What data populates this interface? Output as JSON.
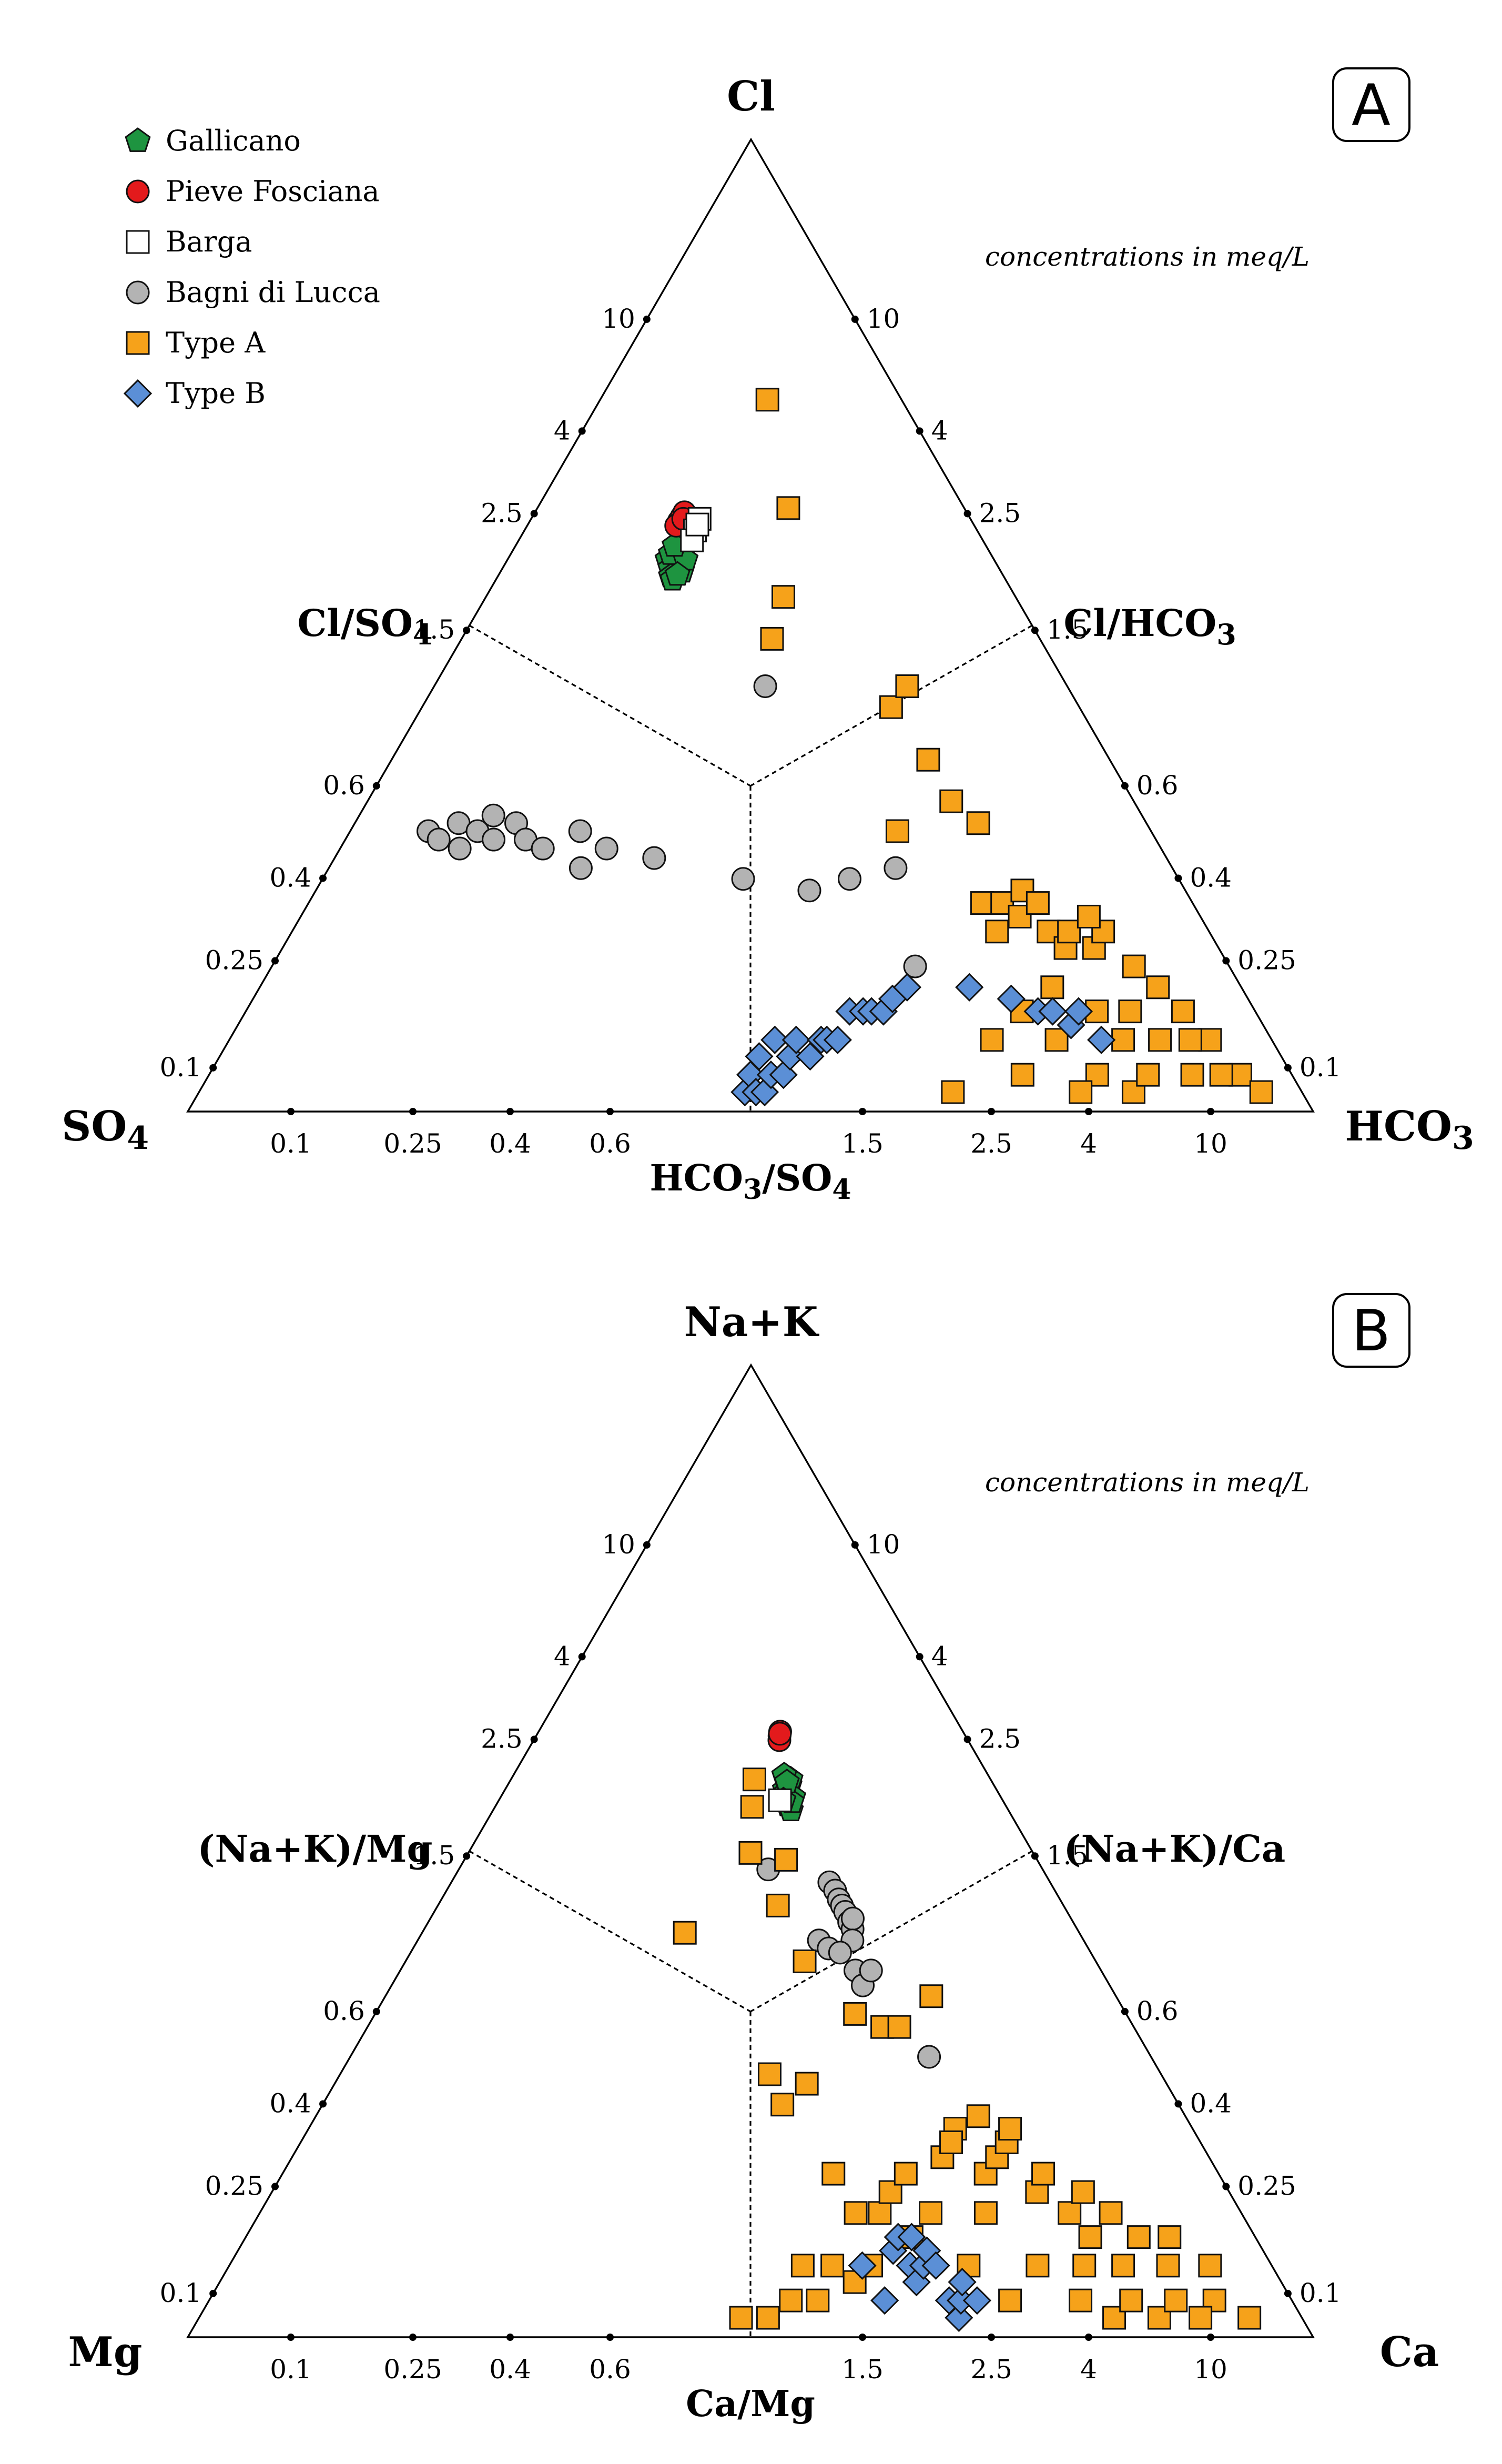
{
  "colors": {
    "gallicano": "#1e9440",
    "pieve": "#e31a1c",
    "barga": "#ffffff",
    "bagni": "#b3b3b3",
    "typeA": "#f6a21a",
    "typeB": "#5b8fd6"
  },
  "legend": [
    {
      "key": "gallicano",
      "label": "Gallicano",
      "marker": "pentagon"
    },
    {
      "key": "pieve",
      "label": "Pieve Fosciana",
      "marker": "circle"
    },
    {
      "key": "barga",
      "label": "Barga",
      "marker": "square"
    },
    {
      "key": "bagni",
      "label": "Bagni di Lucca",
      "marker": "circle"
    },
    {
      "key": "typeA",
      "label": "Type A",
      "marker": "square"
    },
    {
      "key": "typeB",
      "label": "Type B",
      "marker": "diamond"
    }
  ],
  "chart_data": [
    {
      "type": "scatter",
      "panel": "A",
      "note": "concentrations in meq/L",
      "apex": {
        "label": "Cl",
        "sub": ""
      },
      "left_corner": {
        "label": "SO",
        "sub": "4"
      },
      "right_corner": {
        "label": "HCO",
        "sub": "3"
      },
      "left_field": {
        "label": "Cl/SO",
        "sub": "4"
      },
      "right_field": {
        "label": "Cl/HCO",
        "sub": "3"
      },
      "bottom_axis": {
        "parts": [
          [
            "HCO",
            false
          ],
          [
            "3",
            true
          ],
          [
            "/SO",
            false
          ],
          [
            "4",
            true
          ]
        ]
      },
      "apex_ticks": [
        "10",
        "4",
        "2.5",
        "1.5"
      ],
      "side_ticks": [
        "0.6",
        "0.4",
        "0.25",
        "0.1"
      ],
      "bottom_ticks_left": [
        "0.1",
        "0.25",
        "0.4",
        "0.6"
      ],
      "bottom_ticks_right": [
        "1.5",
        "2.5",
        "4",
        "10"
      ],
      "series": [
        {
          "key": "bagni",
          "name": "Bagni di Lucca",
          "points": [
            [
              0.09,
              0.19
            ],
            [
              0.1,
              0.18
            ],
            [
              0.11,
              0.2
            ],
            [
              0.12,
              0.17
            ],
            [
              0.13,
              0.19
            ],
            [
              0.14,
              0.21
            ],
            [
              0.15,
              0.18
            ],
            [
              0.17,
              0.2
            ],
            [
              0.19,
              0.18
            ],
            [
              0.22,
              0.17
            ],
            [
              0.28,
              0.19
            ],
            [
              0.3,
              0.15
            ],
            [
              0.35,
              0.17
            ],
            [
              0.5,
              0.16
            ],
            [
              0.95,
              0.14
            ],
            [
              1.5,
              0.13
            ],
            [
              2.0,
              0.14
            ],
            [
              2.8,
              0.15
            ],
            [
              2.8,
              0.08
            ],
            [
              1.15,
              0.48
            ]
          ]
        },
        {
          "key": "typeB",
          "name": "Type B",
          "points": [
            [
              0.97,
              0.03
            ],
            [
              1.0,
              0.04
            ],
            [
              1.03,
              0.03
            ],
            [
              1.05,
              0.045
            ],
            [
              1.08,
              0.035
            ],
            [
              1.12,
              0.04
            ],
            [
              1.15,
              0.05
            ],
            [
              1.2,
              0.04
            ],
            [
              1.25,
              0.045
            ],
            [
              1.3,
              0.05
            ],
            [
              1.4,
              0.045
            ],
            [
              1.5,
              0.05
            ],
            [
              1.55,
              0.05
            ],
            [
              1.65,
              0.05
            ],
            [
              1.8,
              0.06
            ],
            [
              1.95,
              0.06
            ],
            [
              2.05,
              0.06
            ],
            [
              2.2,
              0.06
            ],
            [
              2.35,
              0.065
            ],
            [
              2.6,
              0.07
            ],
            [
              3.8,
              0.07
            ],
            [
              4.8,
              0.065
            ],
            [
              5.5,
              0.06
            ],
            [
              6.0,
              0.06
            ],
            [
              6.5,
              0.055
            ],
            [
              7.0,
              0.06
            ],
            [
              7.5,
              0.05
            ]
          ]
        },
        {
          "key": "typeA",
          "name": "Type A",
          "points": [
            [
              1.4,
              3.0
            ],
            [
              1.7,
              1.5
            ],
            [
              1.45,
              0.85
            ],
            [
              1.25,
              0.65
            ],
            [
              3.6,
              0.42
            ],
            [
              4.4,
              0.48
            ],
            [
              4.4,
              0.3
            ],
            [
              4.8,
              0.23
            ],
            [
              5.6,
              0.2
            ],
            [
              3.0,
              0.19
            ],
            [
              4.8,
              0.12
            ],
            [
              5.5,
              0.12
            ],
            [
              6.0,
              0.11
            ],
            [
              6.5,
              0.13
            ],
            [
              7.0,
              0.1
            ],
            [
              7.5,
              0.09
            ],
            [
              8.0,
              0.1
            ],
            [
              9.0,
              0.09
            ],
            [
              10.0,
              0.1
            ],
            [
              11.0,
              0.08
            ],
            [
              12.0,
              0.07
            ],
            [
              13.0,
              0.06
            ],
            [
              14.0,
              0.05
            ],
            [
              15.0,
              0.04
            ],
            [
              16.0,
              0.03
            ],
            [
              4.0,
              0.05
            ],
            [
              4.5,
              0.04
            ],
            [
              5.0,
              0.06
            ],
            [
              5.8,
              0.05
            ],
            [
              6.3,
              0.07
            ],
            [
              6.8,
              0.04
            ],
            [
              7.8,
              0.06
            ],
            [
              8.5,
              0.05
            ],
            [
              9.5,
              0.06
            ],
            [
              10.5,
              0.05
            ],
            [
              11.5,
              0.04
            ],
            [
              12.5,
              0.05
            ],
            [
              13.5,
              0.04
            ],
            [
              3.0,
              0.03
            ],
            [
              6.0,
              0.03
            ],
            [
              8.0,
              0.03
            ],
            [
              9.0,
              0.04
            ],
            [
              5.0,
              0.1
            ],
            [
              7.0,
              0.12
            ],
            [
              9.5,
              0.11
            ]
          ]
        },
        {
          "key": "gallicano",
          "name": "Gallicano",
          "points": [
            [
              0.36,
              1.08
            ],
            [
              0.38,
              1.02
            ],
            [
              0.4,
              1.1
            ],
            [
              0.42,
              1.05
            ],
            [
              0.39,
              0.97
            ],
            [
              0.41,
              1.15
            ],
            [
              0.44,
              1.0
            ],
            [
              0.37,
              1.12
            ],
            [
              0.43,
              1.2
            ],
            [
              0.4,
              0.95
            ],
            [
              0.45,
              1.08
            ],
            [
              0.38,
              1.18
            ],
            [
              0.42,
              0.98
            ]
          ]
        },
        {
          "key": "pieve",
          "name": "Pieve Fosciana",
          "points": [
            [
              0.38,
              1.38
            ],
            [
              0.39,
              1.42
            ],
            [
              0.4,
              1.46
            ],
            [
              0.37,
              1.34
            ],
            [
              0.4,
              1.4
            ]
          ]
        },
        {
          "key": "barga",
          "name": "Barga",
          "points": [
            [
              0.48,
              1.3
            ],
            [
              0.5,
              1.4
            ],
            [
              0.47,
              1.22
            ],
            [
              0.49,
              1.35
            ]
          ]
        }
      ]
    },
    {
      "type": "scatter",
      "panel": "B",
      "note": "concentrations in meq/L",
      "apex": {
        "label": "Na+K",
        "sub": ""
      },
      "left_corner": {
        "label": "Mg",
        "sub": ""
      },
      "right_corner": {
        "label": "Ca",
        "sub": ""
      },
      "left_field": {
        "label": "(Na+K)/Mg",
        "sub": ""
      },
      "right_field": {
        "label": "(Na+K)/Ca",
        "sub": ""
      },
      "bottom_axis": {
        "parts": [
          [
            "Ca/Mg",
            false
          ]
        ]
      },
      "apex_ticks": [
        "10",
        "4",
        "2.5",
        "1.5"
      ],
      "side_ticks": [
        "0.6",
        "0.4",
        "0.25",
        "0.1"
      ],
      "bottom_ticks_left": [
        "0.1",
        "0.25",
        "0.4",
        "0.6"
      ],
      "bottom_ticks_right": [
        "1.5",
        "2.5",
        "4",
        "10"
      ],
      "series": [
        {
          "key": "bagni",
          "name": "Bagni di Lucca",
          "points": [
            [
              2.2,
              0.58
            ],
            [
              2.3,
              0.55
            ],
            [
              2.35,
              0.52
            ],
            [
              2.4,
              0.5
            ],
            [
              2.45,
              0.48
            ],
            [
              2.5,
              0.45
            ],
            [
              2.55,
              0.43
            ],
            [
              2.6,
              0.46
            ],
            [
              2.5,
              0.4
            ],
            [
              1.85,
              0.4
            ],
            [
              2.0,
              0.38
            ],
            [
              2.2,
              0.37
            ],
            [
              2.45,
              0.33
            ],
            [
              2.55,
              0.3
            ],
            [
              2.8,
              0.33
            ],
            [
              3.8,
              0.19
            ],
            [
              1.2,
              0.63
            ]
          ]
        },
        {
          "key": "typeB",
          "name": "Type B",
          "points": [
            [
              1.9,
              0.05
            ],
            [
              2.1,
              0.04
            ],
            [
              2.3,
              0.055
            ],
            [
              2.4,
              0.06
            ],
            [
              2.5,
              0.05
            ],
            [
              2.55,
              0.045
            ],
            [
              2.6,
              0.06
            ],
            [
              2.7,
              0.05
            ],
            [
              2.8,
              0.055
            ],
            [
              2.9,
              0.05
            ],
            [
              3.0,
              0.04
            ],
            [
              3.1,
              0.035
            ],
            [
              3.2,
              0.04
            ],
            [
              3.3,
              0.045
            ],
            [
              3.5,
              0.04
            ]
          ]
        },
        {
          "key": "typeA",
          "name": "Type A",
          "points": [
            [
              0.55,
              0.42
            ],
            [
              1.02,
              0.94
            ],
            [
              1.05,
              1.12
            ],
            [
              1.0,
              0.7
            ],
            [
              1.45,
              0.67
            ],
            [
              1.3,
              0.5
            ],
            [
              1.6,
              0.35
            ],
            [
              2.3,
              0.25
            ],
            [
              2.8,
              0.23
            ],
            [
              3.2,
              0.23
            ],
            [
              4.4,
              0.28
            ],
            [
              1.15,
              0.17
            ],
            [
              1.25,
              0.14
            ],
            [
              1.5,
              0.16
            ],
            [
              1.1,
              0.035
            ],
            [
              1.25,
              0.04
            ],
            [
              1.35,
              0.05
            ],
            [
              1.45,
              0.04
            ],
            [
              1.6,
              0.05
            ],
            [
              1.8,
              0.045
            ],
            [
              2.0,
              0.05
            ],
            [
              2.2,
              0.07
            ],
            [
              2.6,
              0.06
            ],
            [
              3.0,
              0.07
            ],
            [
              3.5,
              0.1
            ],
            [
              4.0,
              0.12
            ],
            [
              4.5,
              0.09
            ],
            [
              5.0,
              0.1
            ],
            [
              5.5,
              0.11
            ],
            [
              6.0,
              0.08
            ],
            [
              6.5,
              0.09
            ],
            [
              7.0,
              0.07
            ],
            [
              7.5,
              0.06
            ],
            [
              8.0,
              0.08
            ],
            [
              8.5,
              0.05
            ],
            [
              9.0,
              0.07
            ],
            [
              10.0,
              0.06
            ],
            [
              11.0,
              0.05
            ],
            [
              12.0,
              0.06
            ],
            [
              13.0,
              0.04
            ],
            [
              14.0,
              0.05
            ],
            [
              15.0,
              0.03
            ],
            [
              3.5,
              0.05
            ],
            [
              4.2,
              0.04
            ],
            [
              5.2,
              0.05
            ],
            [
              6.2,
              0.04
            ],
            [
              7.2,
              0.035
            ],
            [
              8.2,
              0.04
            ],
            [
              9.2,
              0.03
            ],
            [
              1.9,
              0.07
            ],
            [
              2.4,
              0.08
            ],
            [
              3.8,
              0.11
            ],
            [
              4.8,
              0.13
            ],
            [
              5.8,
              0.12
            ],
            [
              4.2,
              0.07
            ],
            [
              6.8,
              0.05
            ],
            [
              10.5,
              0.04
            ],
            [
              11.5,
              0.035
            ],
            [
              0.95,
              0.03
            ],
            [
              1.7,
              0.09
            ],
            [
              2.7,
              0.09
            ]
          ]
        },
        {
          "key": "gallicano",
          "name": "Gallicano",
          "points": [
            [
              1.52,
              1.05
            ],
            [
              1.58,
              1.0
            ],
            [
              1.62,
              1.08
            ],
            [
              1.55,
              0.95
            ],
            [
              1.65,
              1.12
            ],
            [
              1.5,
              1.02
            ],
            [
              1.6,
              0.92
            ],
            [
              1.67,
              1.0
            ],
            [
              1.53,
              1.15
            ],
            [
              1.63,
              0.97
            ],
            [
              1.57,
              1.1
            ],
            [
              1.48,
              0.98
            ]
          ]
        },
        {
          "key": "pieve",
          "name": "Pieve Fosciana",
          "points": [
            [
              1.5,
              1.48
            ],
            [
              1.52,
              1.52
            ],
            [
              1.49,
              1.44
            ],
            [
              1.51,
              1.5
            ]
          ]
        },
        {
          "key": "barga",
          "name": "Barga",
          "points": [
            [
              1.42,
              0.98
            ]
          ]
        }
      ]
    }
  ]
}
